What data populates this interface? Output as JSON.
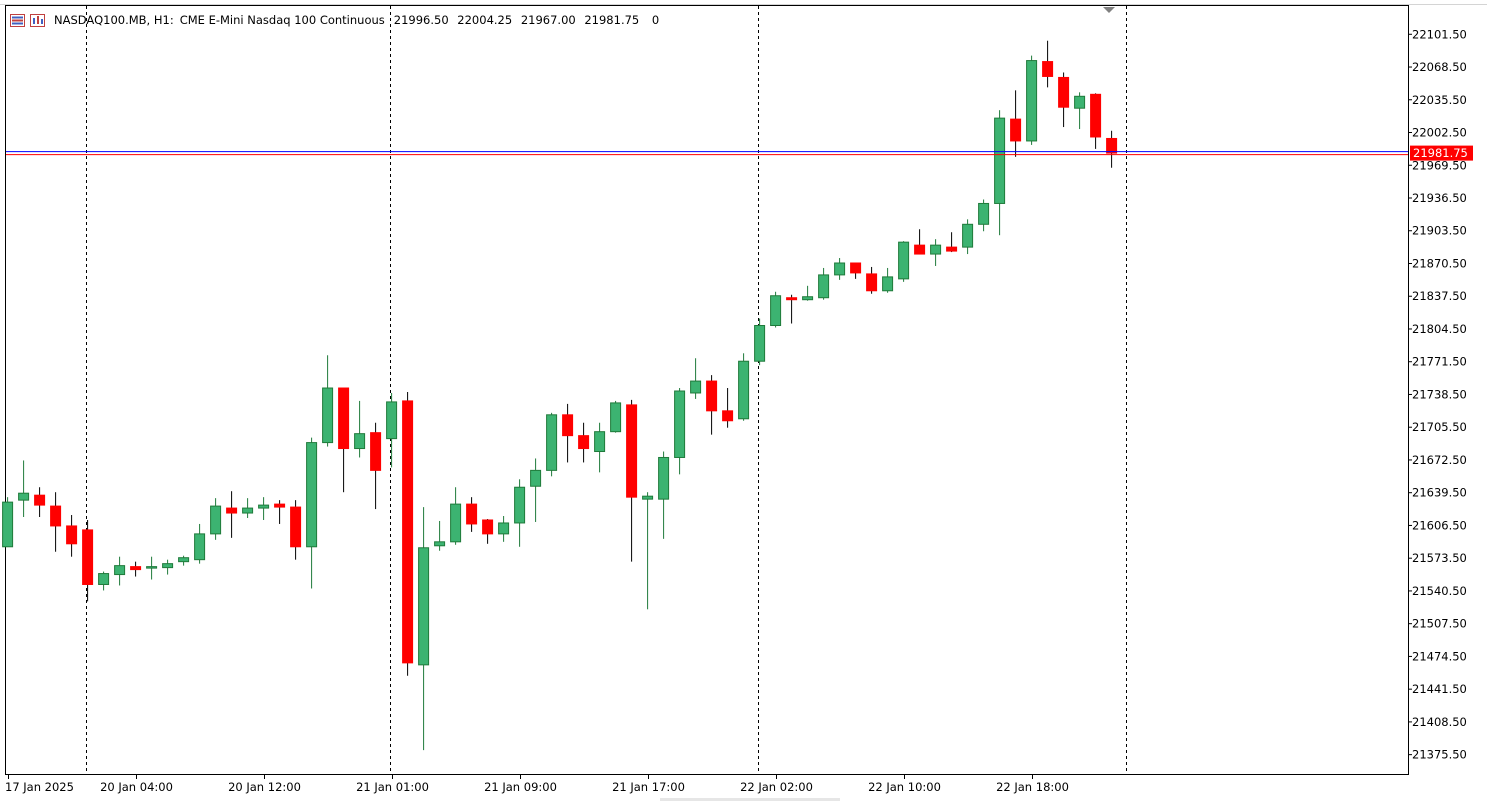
{
  "header": {
    "symbol": "NASDAQ100.MB, H1:",
    "description": "CME E-Mini Nasdaq 100 Continuous",
    "open": "21996.50",
    "high": "22004.25",
    "low": "21967.00",
    "close": "21981.75",
    "volume": "0",
    "icons": [
      "list-icon",
      "chart-window-icon"
    ]
  },
  "colors": {
    "bull": "#3cb371",
    "bear": "#ff0000",
    "bid_line": "#0000ff",
    "ask_line": "#ff0000",
    "price_label_bg": "#ff0000"
  },
  "chart_data": {
    "type": "candlestick",
    "timeframe": "H1",
    "current_price_label": "21981.75",
    "y_ticks": [
      "22101.50",
      "22068.50",
      "22035.50",
      "22002.50",
      "21969.50",
      "21936.50",
      "21903.50",
      "21870.50",
      "21837.50",
      "21804.50",
      "21771.50",
      "21738.50",
      "21705.50",
      "21672.50",
      "21639.50",
      "21606.50",
      "21573.50",
      "21540.50",
      "21507.50",
      "21474.50",
      "21441.50",
      "21408.50",
      "21375.50"
    ],
    "ylim": [
      21356,
      22130
    ],
    "x_ticks": [
      {
        "label": "17 Jan 2025",
        "bar": 0
      },
      {
        "label": "20 Jan 04:00",
        "bar": 8
      },
      {
        "label": "20 Jan 12:00",
        "bar": 16
      },
      {
        "label": "21 Jan 01:00",
        "bar": 24
      },
      {
        "label": "21 Jan 09:00",
        "bar": 32
      },
      {
        "label": "21 Jan 17:00",
        "bar": 40
      },
      {
        "label": "22 Jan 02:00",
        "bar": 48
      },
      {
        "label": "22 Jan 10:00",
        "bar": 56
      },
      {
        "label": "22 Jan 18:00",
        "bar": 64
      }
    ],
    "day_separators_bar": [
      4.9,
      23.9,
      46.9,
      69.9
    ],
    "candles": [
      {
        "o": 21585,
        "h": 21635,
        "l": 21585,
        "c": 21630
      },
      {
        "o": 21632,
        "h": 21672,
        "l": 21615,
        "c": 21639
      },
      {
        "o": 21637,
        "h": 21645,
        "l": 21615,
        "c": 21627
      },
      {
        "o": 21626,
        "h": 21640,
        "l": 21580,
        "c": 21606
      },
      {
        "o": 21606,
        "h": 21617,
        "l": 21575,
        "c": 21588
      },
      {
        "o": 21602,
        "h": 21612,
        "l": 21530,
        "c": 21547
      },
      {
        "o": 21547,
        "h": 21560,
        "l": 21541,
        "c": 21558
      },
      {
        "o": 21557,
        "h": 21575,
        "l": 21546,
        "c": 21566
      },
      {
        "o": 21565,
        "h": 21570,
        "l": 21555,
        "c": 21562
      },
      {
        "o": 21564,
        "h": 21575,
        "l": 21552,
        "c": 21565
      },
      {
        "o": 21564,
        "h": 21572,
        "l": 21557,
        "c": 21568
      },
      {
        "o": 21570,
        "h": 21576,
        "l": 21566,
        "c": 21574
      },
      {
        "o": 21572,
        "h": 21608,
        "l": 21568,
        "c": 21598
      },
      {
        "o": 21598,
        "h": 21634,
        "l": 21592,
        "c": 21626
      },
      {
        "o": 21624,
        "h": 21641,
        "l": 21594,
        "c": 21619
      },
      {
        "o": 21619,
        "h": 21634,
        "l": 21614,
        "c": 21624
      },
      {
        "o": 21624,
        "h": 21635,
        "l": 21612,
        "c": 21627
      },
      {
        "o": 21628,
        "h": 21632,
        "l": 21608,
        "c": 21625
      },
      {
        "o": 21625,
        "h": 21632,
        "l": 21572,
        "c": 21585
      },
      {
        "o": 21585,
        "h": 21695,
        "l": 21543,
        "c": 21690
      },
      {
        "o": 21690,
        "h": 21778,
        "l": 21686,
        "c": 21745
      },
      {
        "o": 21745,
        "h": 21745,
        "l": 21640,
        "c": 21684
      },
      {
        "o": 21684,
        "h": 21732,
        "l": 21675,
        "c": 21699
      },
      {
        "o": 21700,
        "h": 21710,
        "l": 21623,
        "c": 21662
      },
      {
        "o": 21694,
        "h": 21740,
        "l": 21665,
        "c": 21731
      },
      {
        "o": 21732,
        "h": 21741,
        "l": 21455,
        "c": 21468
      },
      {
        "o": 21466,
        "h": 21625,
        "l": 21380,
        "c": 21584
      },
      {
        "o": 21586,
        "h": 21611,
        "l": 21581,
        "c": 21590
      },
      {
        "o": 21590,
        "h": 21645,
        "l": 21587,
        "c": 21628
      },
      {
        "o": 21628,
        "h": 21635,
        "l": 21600,
        "c": 21608
      },
      {
        "o": 21612,
        "h": 21613,
        "l": 21588,
        "c": 21598
      },
      {
        "o": 21598,
        "h": 21616,
        "l": 21590,
        "c": 21609
      },
      {
        "o": 21609,
        "h": 21653,
        "l": 21585,
        "c": 21645
      },
      {
        "o": 21646,
        "h": 21674,
        "l": 21610,
        "c": 21662
      },
      {
        "o": 21662,
        "h": 21720,
        "l": 21656,
        "c": 21718
      },
      {
        "o": 21718,
        "h": 21729,
        "l": 21670,
        "c": 21697
      },
      {
        "o": 21697,
        "h": 21710,
        "l": 21670,
        "c": 21684
      },
      {
        "o": 21681,
        "h": 21710,
        "l": 21660,
        "c": 21701
      },
      {
        "o": 21701,
        "h": 21732,
        "l": 21700,
        "c": 21730
      },
      {
        "o": 21728,
        "h": 21733,
        "l": 21570,
        "c": 21635
      },
      {
        "o": 21633,
        "h": 21640,
        "l": 21522,
        "c": 21636
      },
      {
        "o": 21633,
        "h": 21681,
        "l": 21593,
        "c": 21675
      },
      {
        "o": 21675,
        "h": 21745,
        "l": 21658,
        "c": 21742
      },
      {
        "o": 21740,
        "h": 21775,
        "l": 21734,
        "c": 21752
      },
      {
        "o": 21752,
        "h": 21758,
        "l": 21698,
        "c": 21722
      },
      {
        "o": 21722,
        "h": 21745,
        "l": 21705,
        "c": 21712
      },
      {
        "o": 21714,
        "h": 21780,
        "l": 21712,
        "c": 21772
      },
      {
        "o": 21772,
        "h": 21815,
        "l": 21768,
        "c": 21808
      },
      {
        "o": 21808,
        "h": 21842,
        "l": 21806,
        "c": 21838
      },
      {
        "o": 21836,
        "h": 21839,
        "l": 21810,
        "c": 21834
      },
      {
        "o": 21834,
        "h": 21848,
        "l": 21833,
        "c": 21837
      },
      {
        "o": 21836,
        "h": 21866,
        "l": 21834,
        "c": 21859
      },
      {
        "o": 21859,
        "h": 21876,
        "l": 21854,
        "c": 21871
      },
      {
        "o": 21871,
        "h": 21871,
        "l": 21855,
        "c": 21861
      },
      {
        "o": 21860,
        "h": 21867,
        "l": 21840,
        "c": 21843
      },
      {
        "o": 21843,
        "h": 21866,
        "l": 21841,
        "c": 21857
      },
      {
        "o": 21855,
        "h": 21893,
        "l": 21852,
        "c": 21892
      },
      {
        "o": 21889,
        "h": 21905,
        "l": 21880,
        "c": 21880
      },
      {
        "o": 21880,
        "h": 21895,
        "l": 21868,
        "c": 21889
      },
      {
        "o": 21887,
        "h": 21902,
        "l": 21882,
        "c": 21883
      },
      {
        "o": 21887,
        "h": 21915,
        "l": 21880,
        "c": 21910
      },
      {
        "o": 21910,
        "h": 21935,
        "l": 21903,
        "c": 21931
      },
      {
        "o": 21931,
        "h": 22025,
        "l": 21899,
        "c": 22017
      },
      {
        "o": 22016,
        "h": 22045,
        "l": 21978,
        "c": 21994
      },
      {
        "o": 21994,
        "h": 22080,
        "l": 21990,
        "c": 22075
      },
      {
        "o": 22074,
        "h": 22095,
        "l": 22048,
        "c": 22059
      },
      {
        "o": 22058,
        "h": 22063,
        "l": 22008,
        "c": 22028
      },
      {
        "o": 22027,
        "h": 22043,
        "l": 22006,
        "c": 22039
      },
      {
        "o": 22041,
        "h": 22042,
        "l": 21986,
        "c": 21998
      },
      {
        "o": 21996.5,
        "h": 22004.25,
        "l": 21967,
        "c": 21981.75
      }
    ]
  }
}
